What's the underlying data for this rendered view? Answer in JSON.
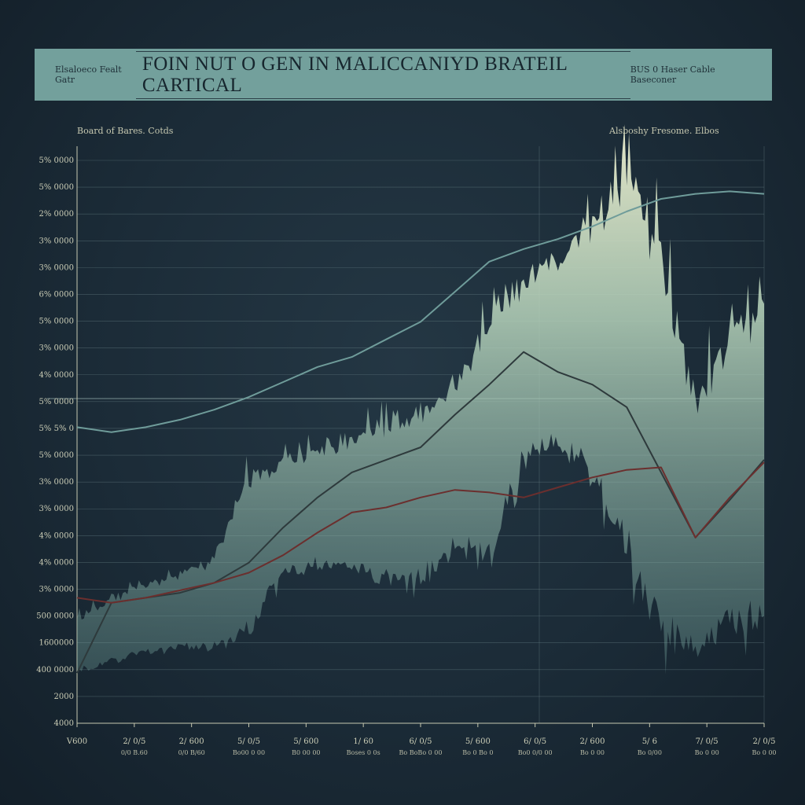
{
  "header": {
    "left_text": "Elsaloeco Fealt Gatr",
    "title": "FOIN NUT O GEN IN MALICCANIYD BRATEIL CARTICAL",
    "right_text": "BUS 0 Haser Cable Baseconer"
  },
  "legend": {
    "left": "Board of Bares. Cotds",
    "right": "Alsboshy Fresome. Elbos"
  },
  "colors": {
    "background": "#1b2b37",
    "title_bar": "#73a09c",
    "grid": "#6c8488",
    "spectrum_fill": "#9fc6b4",
    "spectrum_highlight": "#eef0cf",
    "teal_line": "#6f9c9a",
    "dark_line_1": "#2e3a3c",
    "dark_line_2": "#6b2f2e"
  },
  "chart_data": {
    "type": "area",
    "title": "FOIN NUT O GEN IN MALICCANIYD BRATEIL CARTICAL",
    "xlabel": "",
    "ylabel": "",
    "y_tick_labels": [
      "5% 0000",
      "5% 0000",
      "2% 0000",
      "3% 0000",
      "3% 0000",
      "6% 0000",
      "5% 0000",
      "3% 0000",
      "4% 0000",
      "5% 0000",
      "5% 5% 0",
      "5% 0000",
      "3% 0000",
      "3% 0000",
      "4% 0000",
      "4% 0000",
      "3% 0000",
      "500 0000",
      "1600000",
      "400 0000",
      "2000",
      "4000"
    ],
    "x_tick_labels": [
      "V600",
      "2/ 0/5",
      "2/ 600",
      "5/ 0/5",
      "5/ 600",
      "1/ 60",
      "6/ 0/5",
      "5/ 600",
      "6/ 0/5",
      "2/ 600",
      "5/ 6",
      "7/ 0/5",
      "2/ 0/5"
    ],
    "x_tick_sublabels": [
      "",
      "0/0 B.60",
      "0/0 B/60",
      "Bo00 0 00",
      "B0 00 00",
      "Boses 0 0s",
      "Bo BoBo 0 00",
      "Bo 0 Bo 0",
      "Bo0 0/0 00",
      "Bo 0 00",
      "Bo 0/00",
      "Bo 0 00",
      "Bo 0 00"
    ],
    "x": [
      0,
      5,
      10,
      15,
      20,
      25,
      30,
      35,
      40,
      45,
      50,
      55,
      60,
      65,
      70,
      75,
      80,
      85,
      90,
      95,
      100
    ],
    "ylim": [
      0,
      23
    ],
    "grid": true,
    "series": [
      {
        "values": [
          3.6,
          4.6,
          4.8,
          4.8,
          4.8,
          5.3,
          5.6,
          7.6,
          9.2,
          9.8,
          10.6,
          11.4,
          12.4,
          11.8,
          11.0,
          10.0,
          18.8,
          20.0,
          19.0,
          14.6,
          10.0
        ],
        "upper": [
          4.2,
          5.0,
          5.6,
          6.0,
          6.6,
          9.8,
          10.6,
          10.9,
          11.4,
          12.0,
          12.6,
          13.8,
          16.2,
          17.8,
          18.6,
          20.2,
          22.6,
          18.6,
          13.0,
          15.4,
          17.0
        ],
        "lower": [
          2.0,
          2.4,
          2.8,
          3.0,
          3.0,
          3.6,
          6.0,
          6.2,
          6.2,
          5.6,
          5.6,
          7.0,
          6.4,
          10.5,
          11.0,
          9.8,
          6.6,
          3.2,
          2.6,
          3.8,
          4.0
        ]
      },
      {
        "values": [
          11.8,
          11.6,
          11.8,
          12.1,
          12.5,
          13.0,
          13.6,
          14.2,
          14.6,
          15.3,
          16.0,
          17.2,
          18.4,
          18.9,
          19.3,
          19.8,
          20.4,
          20.9,
          21.1,
          21.2,
          21.1
        ]
      },
      {
        "values": [
          2.0,
          4.8,
          5.0,
          5.2,
          5.6,
          6.4,
          7.8,
          9.0,
          10.0,
          10.5,
          11.0,
          12.3,
          13.5,
          14.8,
          14.0,
          13.5,
          12.6,
          10.0,
          7.4,
          8.9,
          10.5
        ]
      },
      {
        "values": [
          5.0,
          4.8,
          5.0,
          5.3,
          5.6,
          6.0,
          6.7,
          7.6,
          8.4,
          8.6,
          9.0,
          9.3,
          9.2,
          9.0,
          9.4,
          9.8,
          10.1,
          10.2,
          7.4,
          9.0,
          10.4
        ]
      }
    ]
  }
}
